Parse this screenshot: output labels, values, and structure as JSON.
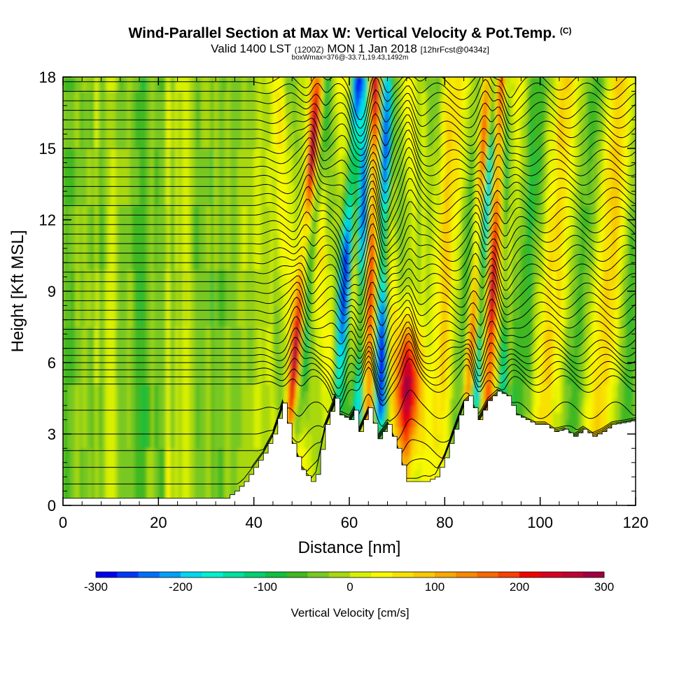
{
  "chart_data": {
    "type": "heatmap",
    "title": "Wind-Parallel Section at Max W: Vertical Velocity & Pot.Temp.",
    "title_mark": "(C)",
    "subtitle_valid": "Valid 1400 LST",
    "subtitle_utc": "(1200Z)",
    "subtitle_date": "MON 1 Jan 2018",
    "subtitle_fcst": "[12hrFcst@0434z]",
    "subtitle_box": "boxWmax=376@-33.71,19.43,1492m",
    "xlabel": "Distance [nm]",
    "ylabel": "Height [Kft MSL]",
    "xlim": [
      0,
      120
    ],
    "ylim": [
      0,
      18
    ],
    "x_ticks": [
      0,
      20,
      40,
      60,
      80,
      100,
      120
    ],
    "y_ticks": [
      0,
      3,
      6,
      9,
      12,
      15,
      18
    ],
    "colorbar": {
      "label": "Vertical Velocity [cm/s]",
      "range": [
        -300,
        300
      ],
      "ticks": [
        -300,
        -200,
        -100,
        0,
        100,
        200,
        300
      ],
      "colors": [
        "#0000f0",
        "#0038f8",
        "#0070f8",
        "#00a0f8",
        "#00d8f0",
        "#00f0d0",
        "#00e0a0",
        "#00d070",
        "#10c040",
        "#40b820",
        "#78c820",
        "#a8d810",
        "#d8f000",
        "#f8f800",
        "#f8e000",
        "#f8c800",
        "#f8a800",
        "#f88800",
        "#f86800",
        "#f84000",
        "#f00000",
        "#d80020",
        "#c00030",
        "#a00040"
      ]
    },
    "terrain_kft": [
      [
        0,
        0.3
      ],
      [
        34,
        0.3
      ],
      [
        36,
        0.6
      ],
      [
        38,
        1.0
      ],
      [
        40,
        1.6
      ],
      [
        42,
        2.2
      ],
      [
        44,
        3.0
      ],
      [
        46,
        4.3
      ],
      [
        48,
        2.6
      ],
      [
        50,
        1.5
      ],
      [
        52,
        1.0
      ],
      [
        53,
        1.3
      ],
      [
        55,
        3.4
      ],
      [
        57,
        4.5
      ],
      [
        58,
        3.8
      ],
      [
        60,
        3.6
      ],
      [
        61,
        4.0
      ],
      [
        62,
        3.1
      ],
      [
        64,
        4.1
      ],
      [
        66,
        2.8
      ],
      [
        68,
        3.4
      ],
      [
        70,
        2.4
      ],
      [
        72,
        1.0
      ],
      [
        74,
        1.0
      ],
      [
        76,
        1.0
      ],
      [
        78,
        1.2
      ],
      [
        80,
        2.0
      ],
      [
        82,
        3.2
      ],
      [
        84,
        4.4
      ],
      [
        85,
        4.6
      ],
      [
        87,
        3.6
      ],
      [
        89,
        4.4
      ],
      [
        91,
        4.8
      ],
      [
        93,
        4.6
      ],
      [
        95,
        3.8
      ],
      [
        97,
        3.6
      ],
      [
        99,
        3.4
      ],
      [
        101,
        3.4
      ],
      [
        103,
        3.1
      ],
      [
        105,
        3.2
      ],
      [
        107,
        2.9
      ],
      [
        109,
        3.2
      ],
      [
        111,
        2.9
      ],
      [
        113,
        3.1
      ],
      [
        115,
        3.4
      ],
      [
        118,
        3.5
      ],
      [
        120,
        3.6
      ]
    ],
    "w_bands": [
      {
        "x_base": 47.5,
        "y_base": 3.4,
        "slope_nm_per_kft": 0.42,
        "peak_cm_s": 250
      },
      {
        "x_base": 49.0,
        "y_base": 3.4,
        "slope_nm_per_kft": 0.42,
        "peak_cm_s": -120
      },
      {
        "x_base": 57.5,
        "y_base": 4.5,
        "slope_nm_per_kft": 0.32,
        "peak_cm_s": -300
      },
      {
        "x_base": 62.0,
        "y_base": 4.0,
        "slope_nm_per_kft": 0.1,
        "peak_cm_s": -250
      },
      {
        "x_base": 64.0,
        "y_base": 4.0,
        "slope_nm_per_kft": 0.1,
        "peak_cm_s": 250
      },
      {
        "x_base": 66.5,
        "y_base": 4.0,
        "slope_nm_per_kft": 0.1,
        "peak_cm_s": -280
      },
      {
        "x_base": 72.5,
        "y_base": 2.0,
        "slope_nm_per_kft": 0.0,
        "peak_cm_s": 300
      },
      {
        "x_base": 85.0,
        "y_base": 4.6,
        "slope_nm_per_kft": 0.3,
        "peak_cm_s": 260
      },
      {
        "x_base": 86.5,
        "y_base": 4.6,
        "slope_nm_per_kft": 0.3,
        "peak_cm_s": -200
      },
      {
        "x_base": 89.0,
        "y_base": 4.4,
        "slope_nm_per_kft": 0.2,
        "peak_cm_s": 220
      },
      {
        "x_base": 92.0,
        "y_base": 4.8,
        "slope_nm_per_kft": 0.1,
        "peak_cm_s": -160
      }
    ],
    "theta_contours_kft": [
      0.9,
      1.6,
      2.3,
      3.0,
      4.0,
      5.1,
      5.4,
      5.7,
      6.0,
      6.3,
      6.6,
      7.0,
      7.4,
      7.8,
      8.2,
      8.6,
      9.0,
      9.4,
      9.8,
      10.2,
      10.6,
      11.0,
      11.4,
      11.8,
      12.2,
      12.6,
      13.0,
      13.4,
      13.8,
      14.2,
      14.6,
      15.0,
      15.4,
      15.8,
      16.2,
      16.6,
      17.0,
      17.4,
      17.8
    ]
  }
}
